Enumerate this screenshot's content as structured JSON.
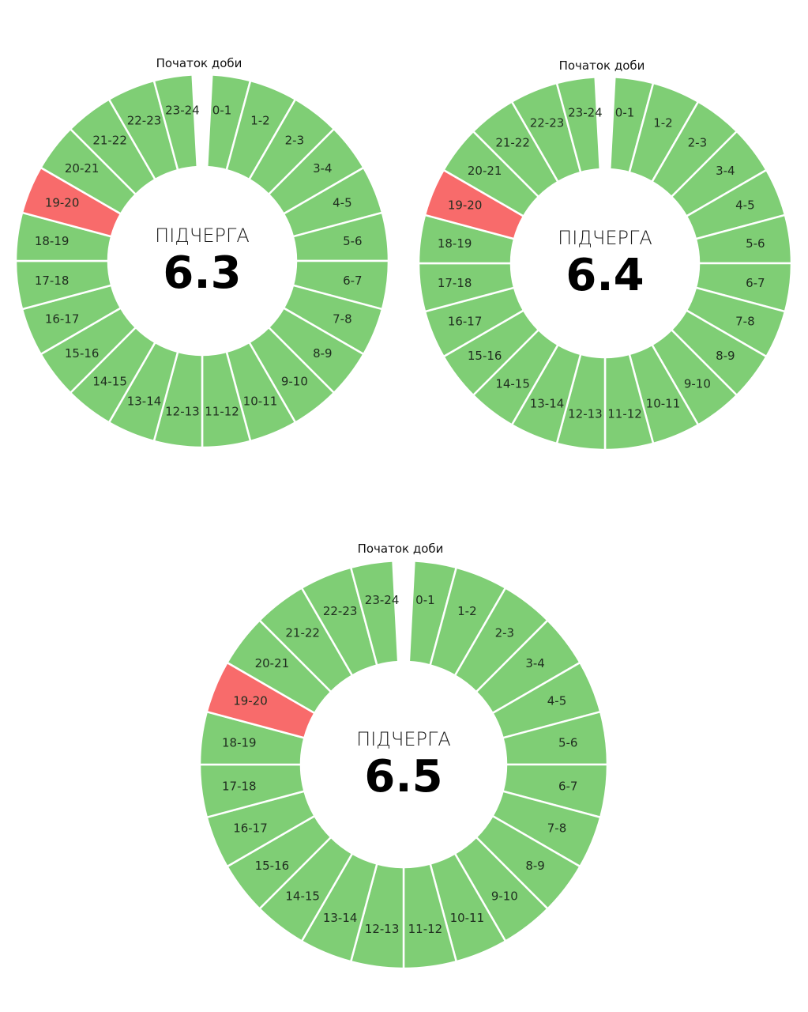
{
  "chart_data": [
    {
      "type": "pie",
      "top_label": "Початок доби",
      "caption": "ПІДЧЕРГА",
      "value": "6.3",
      "segments": [
        {
          "label": "0-1",
          "status": "on"
        },
        {
          "label": "1-2",
          "status": "on"
        },
        {
          "label": "2-3",
          "status": "on"
        },
        {
          "label": "3-4",
          "status": "on"
        },
        {
          "label": "4-5",
          "status": "on"
        },
        {
          "label": "5-6",
          "status": "on"
        },
        {
          "label": "6-7",
          "status": "on"
        },
        {
          "label": "7-8",
          "status": "on"
        },
        {
          "label": "8-9",
          "status": "on"
        },
        {
          "label": "9-10",
          "status": "on"
        },
        {
          "label": "10-11",
          "status": "on"
        },
        {
          "label": "11-12",
          "status": "on"
        },
        {
          "label": "12-13",
          "status": "on"
        },
        {
          "label": "13-14",
          "status": "on"
        },
        {
          "label": "14-15",
          "status": "on"
        },
        {
          "label": "15-16",
          "status": "on"
        },
        {
          "label": "16-17",
          "status": "on"
        },
        {
          "label": "17-18",
          "status": "on"
        },
        {
          "label": "18-19",
          "status": "on"
        },
        {
          "label": "19-20",
          "status": "off"
        },
        {
          "label": "20-21",
          "status": "on"
        },
        {
          "label": "21-22",
          "status": "on"
        },
        {
          "label": "22-23",
          "status": "on"
        },
        {
          "label": "23-24",
          "status": "on"
        }
      ]
    },
    {
      "type": "pie",
      "top_label": "Початок доби",
      "caption": "ПІДЧЕРГА",
      "value": "6.4",
      "segments": [
        {
          "label": "0-1",
          "status": "on"
        },
        {
          "label": "1-2",
          "status": "on"
        },
        {
          "label": "2-3",
          "status": "on"
        },
        {
          "label": "3-4",
          "status": "on"
        },
        {
          "label": "4-5",
          "status": "on"
        },
        {
          "label": "5-6",
          "status": "on"
        },
        {
          "label": "6-7",
          "status": "on"
        },
        {
          "label": "7-8",
          "status": "on"
        },
        {
          "label": "8-9",
          "status": "on"
        },
        {
          "label": "9-10",
          "status": "on"
        },
        {
          "label": "10-11",
          "status": "on"
        },
        {
          "label": "11-12",
          "status": "on"
        },
        {
          "label": "12-13",
          "status": "on"
        },
        {
          "label": "13-14",
          "status": "on"
        },
        {
          "label": "14-15",
          "status": "on"
        },
        {
          "label": "15-16",
          "status": "on"
        },
        {
          "label": "16-17",
          "status": "on"
        },
        {
          "label": "17-18",
          "status": "on"
        },
        {
          "label": "18-19",
          "status": "on"
        },
        {
          "label": "19-20",
          "status": "off"
        },
        {
          "label": "20-21",
          "status": "on"
        },
        {
          "label": "21-22",
          "status": "on"
        },
        {
          "label": "22-23",
          "status": "on"
        },
        {
          "label": "23-24",
          "status": "on"
        }
      ]
    },
    {
      "type": "pie",
      "top_label": "Початок доби",
      "caption": "ПІДЧЕРГА",
      "value": "6.5",
      "segments": [
        {
          "label": "0-1",
          "status": "on"
        },
        {
          "label": "1-2",
          "status": "on"
        },
        {
          "label": "2-3",
          "status": "on"
        },
        {
          "label": "3-4",
          "status": "on"
        },
        {
          "label": "4-5",
          "status": "on"
        },
        {
          "label": "5-6",
          "status": "on"
        },
        {
          "label": "6-7",
          "status": "on"
        },
        {
          "label": "7-8",
          "status": "on"
        },
        {
          "label": "8-9",
          "status": "on"
        },
        {
          "label": "9-10",
          "status": "on"
        },
        {
          "label": "10-11",
          "status": "on"
        },
        {
          "label": "11-12",
          "status": "on"
        },
        {
          "label": "12-13",
          "status": "on"
        },
        {
          "label": "13-14",
          "status": "on"
        },
        {
          "label": "14-15",
          "status": "on"
        },
        {
          "label": "15-16",
          "status": "on"
        },
        {
          "label": "16-17",
          "status": "on"
        },
        {
          "label": "17-18",
          "status": "on"
        },
        {
          "label": "18-19",
          "status": "on"
        },
        {
          "label": "19-20",
          "status": "off"
        },
        {
          "label": "20-21",
          "status": "on"
        },
        {
          "label": "21-22",
          "status": "on"
        },
        {
          "label": "22-23",
          "status": "on"
        },
        {
          "label": "23-24",
          "status": "on"
        }
      ]
    }
  ],
  "colors": {
    "on": "#7fce75",
    "off": "#f86b6b"
  }
}
